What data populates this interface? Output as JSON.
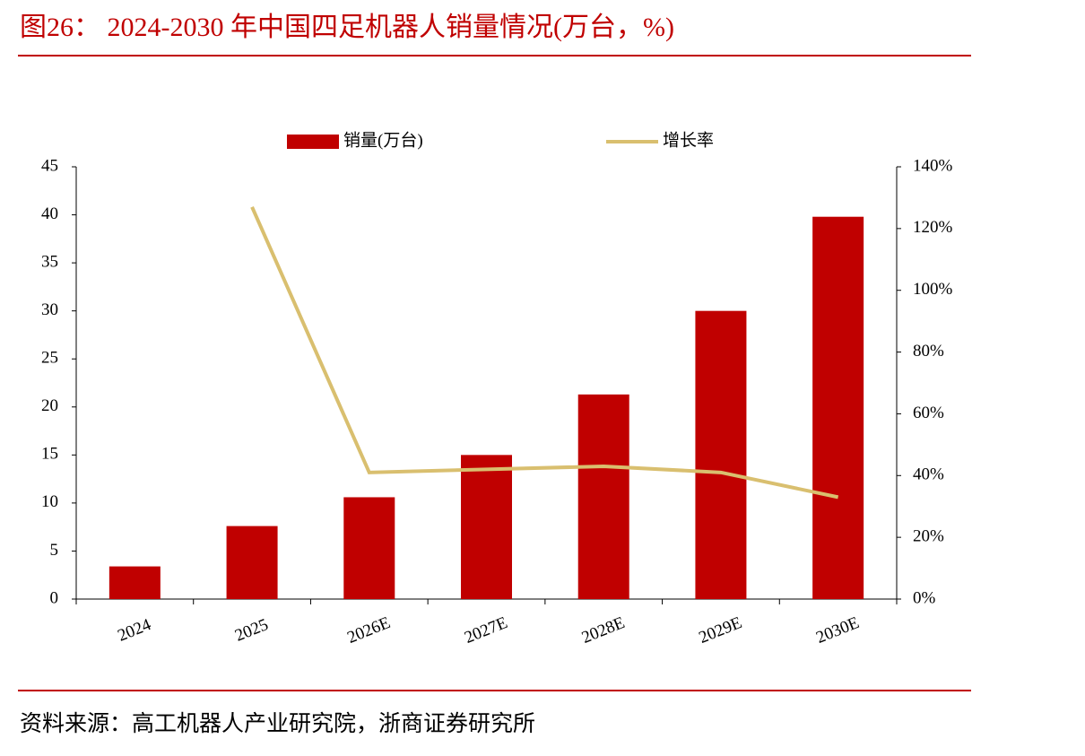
{
  "chart_data": {
    "type": "bar",
    "title": "图26：  2024-2030 年中国四足机器人销量情况(万台，%)",
    "source": "资料来源：高工机器人产业研究院，浙商证券研究所",
    "categories": [
      "2024",
      "2025",
      "2026E",
      "2027E",
      "2028E",
      "2029E",
      "2030E"
    ],
    "series": [
      {
        "name": "销量(万台)",
        "type": "bar",
        "color": "#c00000",
        "values": [
          3.4,
          7.6,
          10.6,
          15.0,
          21.3,
          30.0,
          39.8
        ]
      },
      {
        "name": "增长率",
        "type": "line",
        "axis": "y2",
        "color": "#d9bf6f",
        "values": [
          null,
          127,
          41,
          42,
          43,
          41,
          33
        ]
      }
    ],
    "ylim": [
      0,
      45
    ],
    "yticks": [
      0,
      5,
      10,
      15,
      20,
      25,
      30,
      35,
      40,
      45
    ],
    "y2lim": [
      0,
      140
    ],
    "y2ticks": [
      {
        "value": 0,
        "label": "0%"
      },
      {
        "value": 20,
        "label": "20%"
      },
      {
        "value": 40,
        "label": "40%"
      },
      {
        "value": 60,
        "label": "60%"
      },
      {
        "value": 80,
        "label": "80%"
      },
      {
        "value": 100,
        "label": "100%"
      },
      {
        "value": 120,
        "label": "120%"
      },
      {
        "value": 140,
        "label": "140%"
      }
    ],
    "grid": false,
    "legend": "top"
  }
}
